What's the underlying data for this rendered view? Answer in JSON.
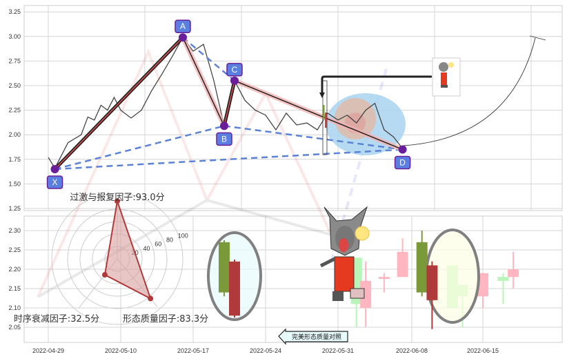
{
  "chart_data": [
    {
      "type": "line",
      "panel": "pattern",
      "yticks": [
        "1.25",
        "1.50",
        "1.75",
        "2.00",
        "2.25",
        "2.50",
        "2.75",
        "3.00",
        "3.25"
      ],
      "ylim": [
        1.25,
        3.25
      ],
      "grid": true,
      "price": [
        [
          "2022-04-29",
          1.77
        ],
        [
          "2022-04-30",
          1.66
        ],
        [
          "2022-05-02",
          1.92
        ],
        [
          "2022-05-04",
          2.0
        ],
        [
          "2022-05-05",
          2.18
        ],
        [
          "2022-05-06",
          2.15
        ],
        [
          "2022-05-07",
          2.3
        ],
        [
          "2022-05-08",
          2.25
        ],
        [
          "2022-05-09",
          2.38
        ],
        [
          "2022-05-10",
          2.25
        ],
        [
          "2022-05-11",
          2.17
        ],
        [
          "2022-05-12",
          2.25
        ],
        [
          "2022-05-13",
          2.45
        ],
        [
          "2022-05-14",
          2.62
        ],
        [
          "2022-05-15",
          2.8
        ],
        [
          "2022-05-16",
          2.99
        ],
        [
          "2022-05-17",
          2.85
        ],
        [
          "2022-05-18",
          2.92
        ],
        [
          "2022-05-19",
          2.55
        ],
        [
          "2022-05-20",
          2.09
        ],
        [
          "2022-05-21",
          2.55
        ],
        [
          "2022-05-22",
          2.35
        ],
        [
          "2022-05-23",
          2.25
        ],
        [
          "2022-05-24",
          2.2
        ],
        [
          "2022-05-25",
          2.05
        ],
        [
          "2022-05-26",
          2.22
        ],
        [
          "2022-05-27",
          2.1
        ],
        [
          "2022-05-28",
          2.12
        ],
        [
          "2022-05-29",
          2.05
        ],
        [
          "2022-05-30",
          2.22
        ],
        [
          "2022-05-31",
          2.15
        ],
        [
          "2022-06-01",
          2.2
        ],
        [
          "2022-06-02",
          2.12
        ],
        [
          "2022-06-03",
          2.25
        ],
        [
          "2022-06-04",
          2.32
        ],
        [
          "2022-06-05",
          2.05
        ],
        [
          "2022-06-06",
          1.98
        ],
        [
          "2022-06-07",
          1.86
        ]
      ],
      "pattern_points": [
        {
          "label": "X",
          "date": "2022-04-30",
          "value": 1.65
        },
        {
          "label": "A",
          "date": "2022-05-16",
          "value": 2.99
        },
        {
          "label": "B",
          "date": "2022-05-20",
          "value": 2.09
        },
        {
          "label": "C",
          "date": "2022-05-21",
          "value": 2.55
        },
        {
          "label": "D",
          "date": "2022-06-07",
          "value": 1.85
        }
      ],
      "colors": {
        "line": "#444444",
        "leg": "#222222",
        "leg_inner": "#e05050",
        "halo": "#f4b4b4",
        "dashed": "#5b82d6",
        "point": "#6a1f9a",
        "label_bg": "#5b7fe0",
        "zone": "#a9d3f0",
        "zone_inner": "#e3b9a4"
      }
    },
    {
      "type": "candlestick",
      "panel": "comparison",
      "yticks": [
        "2.05",
        "2.10",
        "2.15",
        "2.20",
        "2.25",
        "2.30"
      ],
      "ylim": [
        2.02,
        2.33
      ],
      "xticks": [
        "2022-04-29",
        "2022-05-10",
        "2022-05-17",
        "2022-05-24",
        "2022-05-31",
        "2022-06-08",
        "2022-06-15"
      ],
      "grid": true,
      "candles": [
        {
          "date": "2022-05-20",
          "open": 2.14,
          "close": 2.27,
          "high": 2.275,
          "low": 2.13,
          "style": "perfect"
        },
        {
          "date": "2022-05-21",
          "open": 2.22,
          "close": 2.08,
          "high": 2.225,
          "low": 2.075,
          "style": "perfect"
        },
        {
          "date": "2022-06-02",
          "open": 2.11,
          "close": 2.23,
          "high": 2.23,
          "low": 2.05,
          "style": "faded"
        },
        {
          "date": "2022-06-03",
          "open": 2.17,
          "close": 2.1,
          "high": 2.22,
          "low": 2.05,
          "style": "faded"
        },
        {
          "date": "2022-06-05",
          "open": 2.18,
          "close": 2.175,
          "high": 2.19,
          "low": 2.14,
          "style": "faded"
        },
        {
          "date": "2022-06-07",
          "open": 2.245,
          "close": 2.18,
          "high": 2.28,
          "low": 2.18,
          "style": "faded"
        },
        {
          "date": "2022-06-09",
          "open": 2.14,
          "close": 2.27,
          "high": 2.3,
          "low": 2.13,
          "style": "actual"
        },
        {
          "date": "2022-06-10",
          "open": 2.21,
          "close": 2.12,
          "high": 2.22,
          "low": 2.045,
          "style": "actual"
        },
        {
          "date": "2022-06-12",
          "open": 2.1,
          "close": 2.21,
          "high": 2.21,
          "low": 2.1,
          "style": "faded"
        },
        {
          "date": "2022-06-13",
          "open": 2.13,
          "close": 2.16,
          "high": 2.16,
          "low": 2.05,
          "style": "faded"
        },
        {
          "date": "2022-06-15",
          "open": 2.19,
          "close": 2.13,
          "high": 2.19,
          "low": 2.1,
          "style": "faded"
        },
        {
          "date": "2022-06-17",
          "open": 2.17,
          "close": 2.18,
          "high": 2.19,
          "low": 2.11,
          "style": "faded"
        },
        {
          "date": "2022-06-18",
          "open": 2.2,
          "close": 2.18,
          "high": 2.245,
          "low": 2.15,
          "style": "faded"
        }
      ],
      "colors": {
        "up": "#7a9a3a",
        "down": "#b03a3a",
        "up_faded": "#b9f5b9",
        "down_faded": "#ffb6c1",
        "ring": "#808080"
      }
    },
    {
      "type": "radar",
      "rticks": [
        "20",
        "40",
        "60",
        "80",
        "100"
      ],
      "axes": [
        {
          "label": "过激与报复因子:93.0分",
          "value": 93.0
        },
        {
          "label": "形态质量因子:83.3分",
          "value": 83.3
        },
        {
          "label": "时序衰减因子:32.5分",
          "value": 32.5
        }
      ],
      "colors": {
        "fill": "#d9a0a0",
        "stroke": "#b03a3a"
      }
    }
  ],
  "annotation": {
    "compare_label": "完美形态质量对照"
  }
}
